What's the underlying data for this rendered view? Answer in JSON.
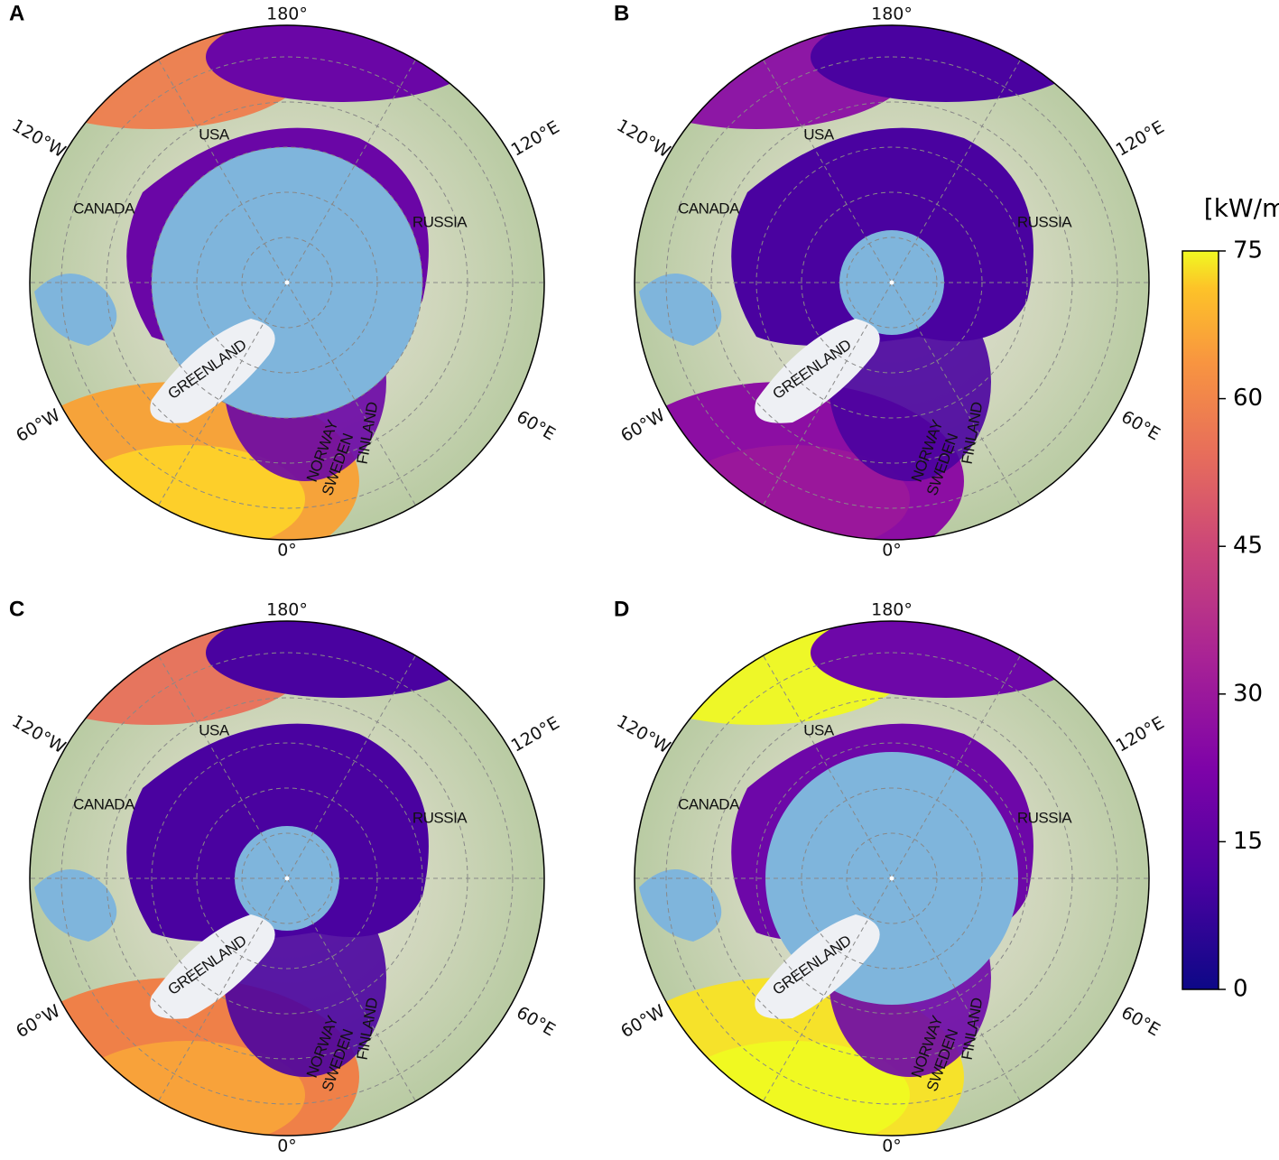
{
  "panels": [
    {
      "label": "A",
      "lon_labels": [
        "180°",
        "120°E",
        "60°E",
        "0°",
        "60°W",
        "120°W"
      ],
      "countries": [
        "USA",
        "CANADA",
        "RUSSIA",
        "GREENLAND",
        "NORWAY",
        "SWEDEN",
        "FINLAND"
      ]
    },
    {
      "label": "B",
      "lon_labels": [
        "180°",
        "120°E",
        "60°E",
        "0°",
        "60°W",
        "120°W"
      ],
      "countries": [
        "USA",
        "CANADA",
        "RUSSIA",
        "GREENLAND",
        "NORWAY",
        "SWEDEN",
        "FINLAND"
      ]
    },
    {
      "label": "C",
      "lon_labels": [
        "180°",
        "120°E",
        "60°E",
        "0°",
        "60°W",
        "120°W"
      ],
      "countries": [
        "USA",
        "CANADA",
        "RUSSIA",
        "GREENLAND",
        "NORWAY",
        "SWEDEN",
        "FINLAND"
      ]
    },
    {
      "label": "D",
      "lon_labels": [
        "180°",
        "120°E",
        "60°E",
        "0°",
        "60°W",
        "120°W"
      ],
      "countries": [
        "USA",
        "CANADA",
        "RUSSIA",
        "GREENLAND",
        "NORWAY",
        "SWEDEN",
        "FINLAND"
      ]
    }
  ],
  "colorbar": {
    "label": "[kW/m]",
    "range": [
      0,
      75
    ],
    "ticks": [
      0,
      15,
      30,
      45,
      60,
      75
    ]
  }
}
